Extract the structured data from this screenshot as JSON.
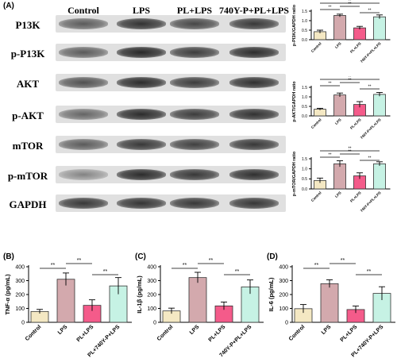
{
  "panels": {
    "a": "(A)",
    "b": "(B)",
    "c": "(C)",
    "d": "(D)"
  },
  "blot": {
    "columns": [
      "Control",
      "LPS",
      "PL+LPS",
      "740Y-P+PL+LPS"
    ],
    "rows": [
      {
        "label": "P13K",
        "intensity": [
          0.55,
          0.75,
          0.65,
          0.72
        ]
      },
      {
        "label": "p-P13K",
        "intensity": [
          0.55,
          0.8,
          0.7,
          0.78
        ]
      },
      {
        "label": "AKT",
        "intensity": [
          0.6,
          0.78,
          0.7,
          0.76
        ]
      },
      {
        "label": "p-AKT",
        "intensity": [
          0.5,
          0.78,
          0.7,
          0.75
        ]
      },
      {
        "label": "mTOR",
        "intensity": [
          0.55,
          0.72,
          0.68,
          0.72
        ]
      },
      {
        "label": "p-mTOR",
        "intensity": [
          0.35,
          0.78,
          0.72,
          0.76
        ]
      },
      {
        "label": "GAPDH",
        "intensity": [
          0.72,
          0.74,
          0.72,
          0.73
        ]
      }
    ]
  },
  "colors": {
    "control": "#f4e8c3",
    "lps": "#d3a9ad",
    "pl_lps": "#f45b8a",
    "y740": "#c6f2e4",
    "edge": "#333333"
  },
  "chart_data": [
    {
      "id": "pi3k",
      "type": "bar",
      "ylabel": "p-PI3K/GAPDH ratio",
      "categories": [
        "Control",
        "LPS",
        "PL+LPS",
        "740Y-P+PL+LPS"
      ],
      "values": [
        0.42,
        1.27,
        0.62,
        1.2
      ],
      "errors": [
        0.08,
        0.07,
        0.08,
        0.1
      ],
      "ylim": [
        0,
        1.5
      ],
      "yticks": [
        "0.0",
        "0.5",
        "1.0",
        "1.5"
      ],
      "sig": [
        "**",
        "**",
        "**",
        "**"
      ]
    },
    {
      "id": "akt",
      "type": "bar",
      "ylabel": "p-AKT/GAPDH ratio",
      "categories": [
        "Control",
        "LPS",
        "PL+LPS",
        "740Y-P+PL+LPS"
      ],
      "values": [
        0.35,
        1.1,
        0.6,
        1.13
      ],
      "errors": [
        0.05,
        0.1,
        0.15,
        0.1
      ],
      "ylim": [
        0,
        1.5
      ],
      "yticks": [
        "0.0",
        "0.5",
        "1.0",
        "1.5"
      ],
      "sig": [
        "**",
        "**",
        "**",
        "**"
      ]
    },
    {
      "id": "mtor",
      "type": "bar",
      "ylabel": "p-mTOR/GAPDH ratio",
      "categories": [
        "Control",
        "LPS",
        "PL+LPS",
        "740Y-P+PL+LPS"
      ],
      "values": [
        0.42,
        1.25,
        0.65,
        1.25
      ],
      "errors": [
        0.12,
        0.15,
        0.15,
        0.1
      ],
      "ylim": [
        0,
        1.5
      ],
      "yticks": [
        "0.0",
        "0.5",
        "1.0",
        "1.5"
      ],
      "sig": [
        "**",
        "**",
        "**",
        "**"
      ]
    },
    {
      "id": "tnf",
      "type": "bar",
      "ylabel": "TNF-α (pg/mL)",
      "categories": [
        "Control",
        "LPS",
        "PL+LPS",
        "PL+740Y-P+LPS"
      ],
      "values": [
        78,
        310,
        122,
        262
      ],
      "errors": [
        15,
        45,
        40,
        60
      ],
      "ylim": [
        0,
        400
      ],
      "yticks": [
        "0",
        "100",
        "200",
        "300",
        "400"
      ],
      "sig": [
        "**",
        "**",
        "**"
      ]
    },
    {
      "id": "il1b",
      "type": "bar",
      "ylabel": "IL-1β (pg/mL)",
      "categories": [
        "Control",
        "LPS",
        "PL+LPS",
        "740Y-P+PL+LPS"
      ],
      "values": [
        82,
        322,
        118,
        255
      ],
      "errors": [
        20,
        38,
        28,
        50
      ],
      "ylim": [
        0,
        400
      ],
      "yticks": [
        "0",
        "100",
        "200",
        "300",
        "400"
      ],
      "sig": [
        "**",
        "**",
        "**"
      ]
    },
    {
      "id": "il6",
      "type": "bar",
      "ylabel": "IL-6 (pg/mL)",
      "categories": [
        "Control",
        "LPS",
        "PL+LPS",
        "PL+740Y-P+LPS"
      ],
      "values": [
        98,
        278,
        92,
        208
      ],
      "errors": [
        30,
        28,
        25,
        48
      ],
      "ylim": [
        0,
        400
      ],
      "yticks": [
        "0",
        "100",
        "200",
        "300",
        "400"
      ],
      "sig": [
        "**",
        "**",
        "**"
      ]
    }
  ]
}
